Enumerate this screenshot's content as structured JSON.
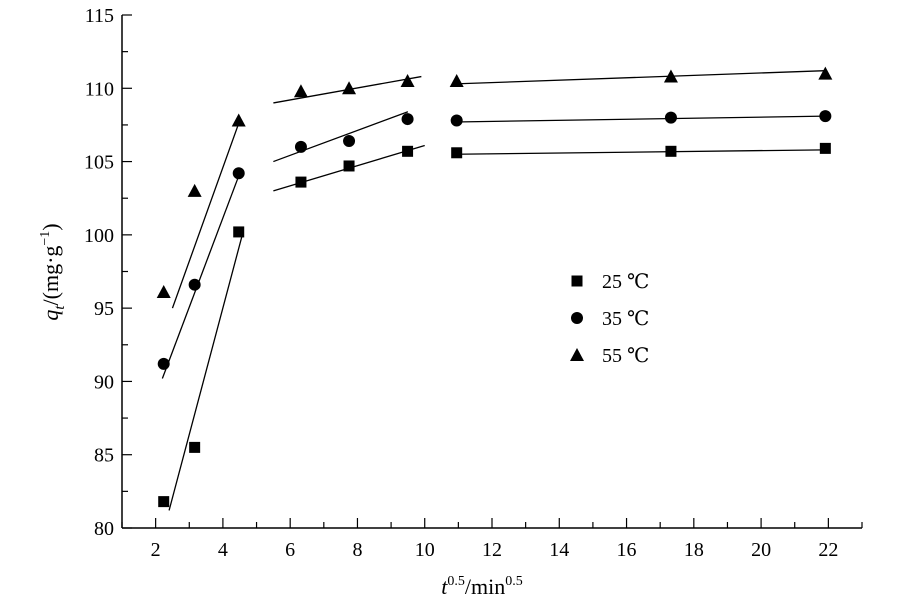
{
  "chart_data": {
    "type": "scatter",
    "title": "",
    "xlabel": {
      "base": "t",
      "exp": "0.5",
      "sep": "/min",
      "exp2": "0.5"
    },
    "ylabel": {
      "base": "q",
      "sub": "t",
      "unit_prefix": "/(mg·g",
      "unit_exp": "−1",
      "unit_suffix": ")"
    },
    "xlim": [
      1,
      23
    ],
    "ylim": [
      80,
      115
    ],
    "xticks": [
      2,
      4,
      6,
      8,
      10,
      12,
      14,
      16,
      18,
      20,
      22
    ],
    "yticks": [
      80,
      85,
      90,
      95,
      100,
      105,
      110,
      115
    ],
    "grid": false,
    "legend_position": "center-right",
    "series": [
      {
        "name": "25 ℃",
        "marker": "square",
        "color": "#000000",
        "points": [
          [
            2.24,
            81.8
          ],
          [
            3.16,
            85.5
          ],
          [
            4.47,
            100.2
          ],
          [
            6.32,
            103.6
          ],
          [
            7.75,
            104.7
          ],
          [
            9.49,
            105.7
          ],
          [
            10.95,
            105.6
          ],
          [
            17.32,
            105.7
          ],
          [
            21.91,
            105.9
          ]
        ],
        "fits": [
          [
            [
              2.4,
              81.2
            ],
            [
              4.6,
              100.2
            ]
          ],
          [
            [
              5.5,
              103.0
            ],
            [
              10.0,
              106.1
            ]
          ],
          [
            [
              10.9,
              105.5
            ],
            [
              21.9,
              105.8
            ]
          ]
        ]
      },
      {
        "name": "35 ℃",
        "marker": "circle",
        "color": "#000000",
        "points": [
          [
            2.24,
            91.2
          ],
          [
            3.16,
            96.6
          ],
          [
            4.47,
            104.2
          ],
          [
            6.32,
            106.0
          ],
          [
            7.75,
            106.4
          ],
          [
            9.49,
            107.9
          ],
          [
            10.95,
            107.8
          ],
          [
            17.32,
            108.0
          ],
          [
            21.91,
            108.1
          ]
        ],
        "fits": [
          [
            [
              2.2,
              90.2
            ],
            [
              4.5,
              104.2
            ]
          ],
          [
            [
              5.5,
              105.0
            ],
            [
              9.5,
              108.4
            ]
          ],
          [
            [
              10.9,
              107.7
            ],
            [
              21.9,
              108.1
            ]
          ]
        ]
      },
      {
        "name": "55 ℃",
        "marker": "triangle",
        "color": "#000000",
        "points": [
          [
            2.24,
            96.1
          ],
          [
            3.16,
            103.0
          ],
          [
            4.47,
            107.8
          ],
          [
            6.32,
            109.8
          ],
          [
            7.75,
            110.0
          ],
          [
            9.49,
            110.5
          ],
          [
            10.95,
            110.5
          ],
          [
            17.32,
            110.8
          ],
          [
            21.91,
            111.0
          ]
        ],
        "fits": [
          [
            [
              2.5,
              95.0
            ],
            [
              4.5,
              107.8
            ]
          ],
          [
            [
              5.5,
              109.0
            ],
            [
              9.9,
              110.8
            ]
          ],
          [
            [
              10.9,
              110.3
            ],
            [
              21.9,
              111.2
            ]
          ]
        ]
      }
    ]
  }
}
